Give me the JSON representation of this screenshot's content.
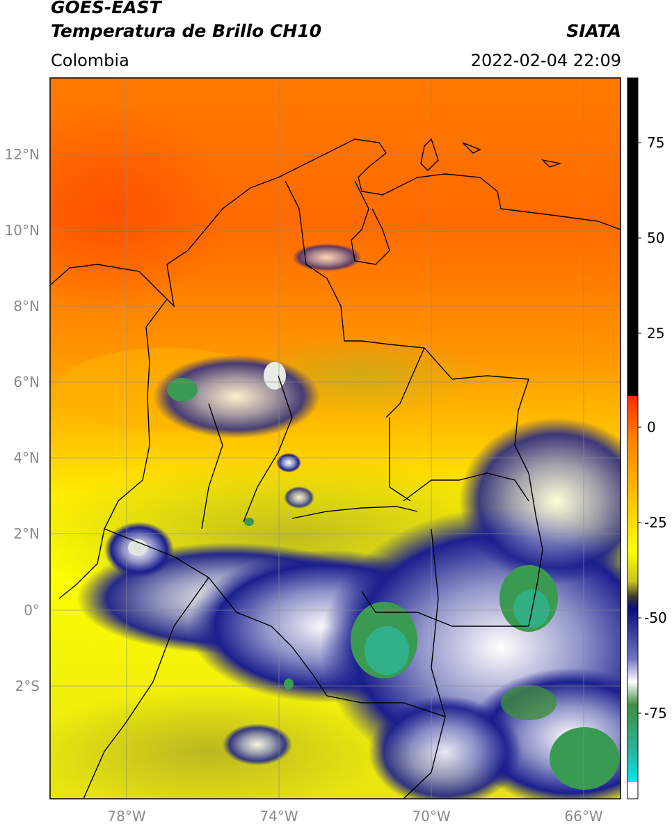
{
  "header": {
    "satellite": "GOES-EAST",
    "product": "Temperatura de Brillo CH10",
    "region": "Colombia",
    "agency": "SIATA",
    "datetime": "2022-02-04 22:09"
  },
  "map": {
    "lat_ticks": [
      "12°N",
      "10°N",
      "8°N",
      "6°N",
      "4°N",
      "2°N",
      "0°",
      "2°S"
    ],
    "lon_ticks": [
      "78°W",
      "74°W",
      "70°W",
      "66°W"
    ],
    "colors": {
      "warm": "#ff5a00",
      "orange": "#ff9a00",
      "yellow": "#ffff00",
      "olive": "#c8c41e",
      "navy": "#15158a",
      "white": "#ffffff",
      "green": "#3a9a52",
      "teal": "#2fb79a"
    }
  },
  "colorbar": {
    "ticks": [
      "75",
      "50",
      "25",
      "0",
      "-25",
      "-50",
      "-75"
    ]
  }
}
